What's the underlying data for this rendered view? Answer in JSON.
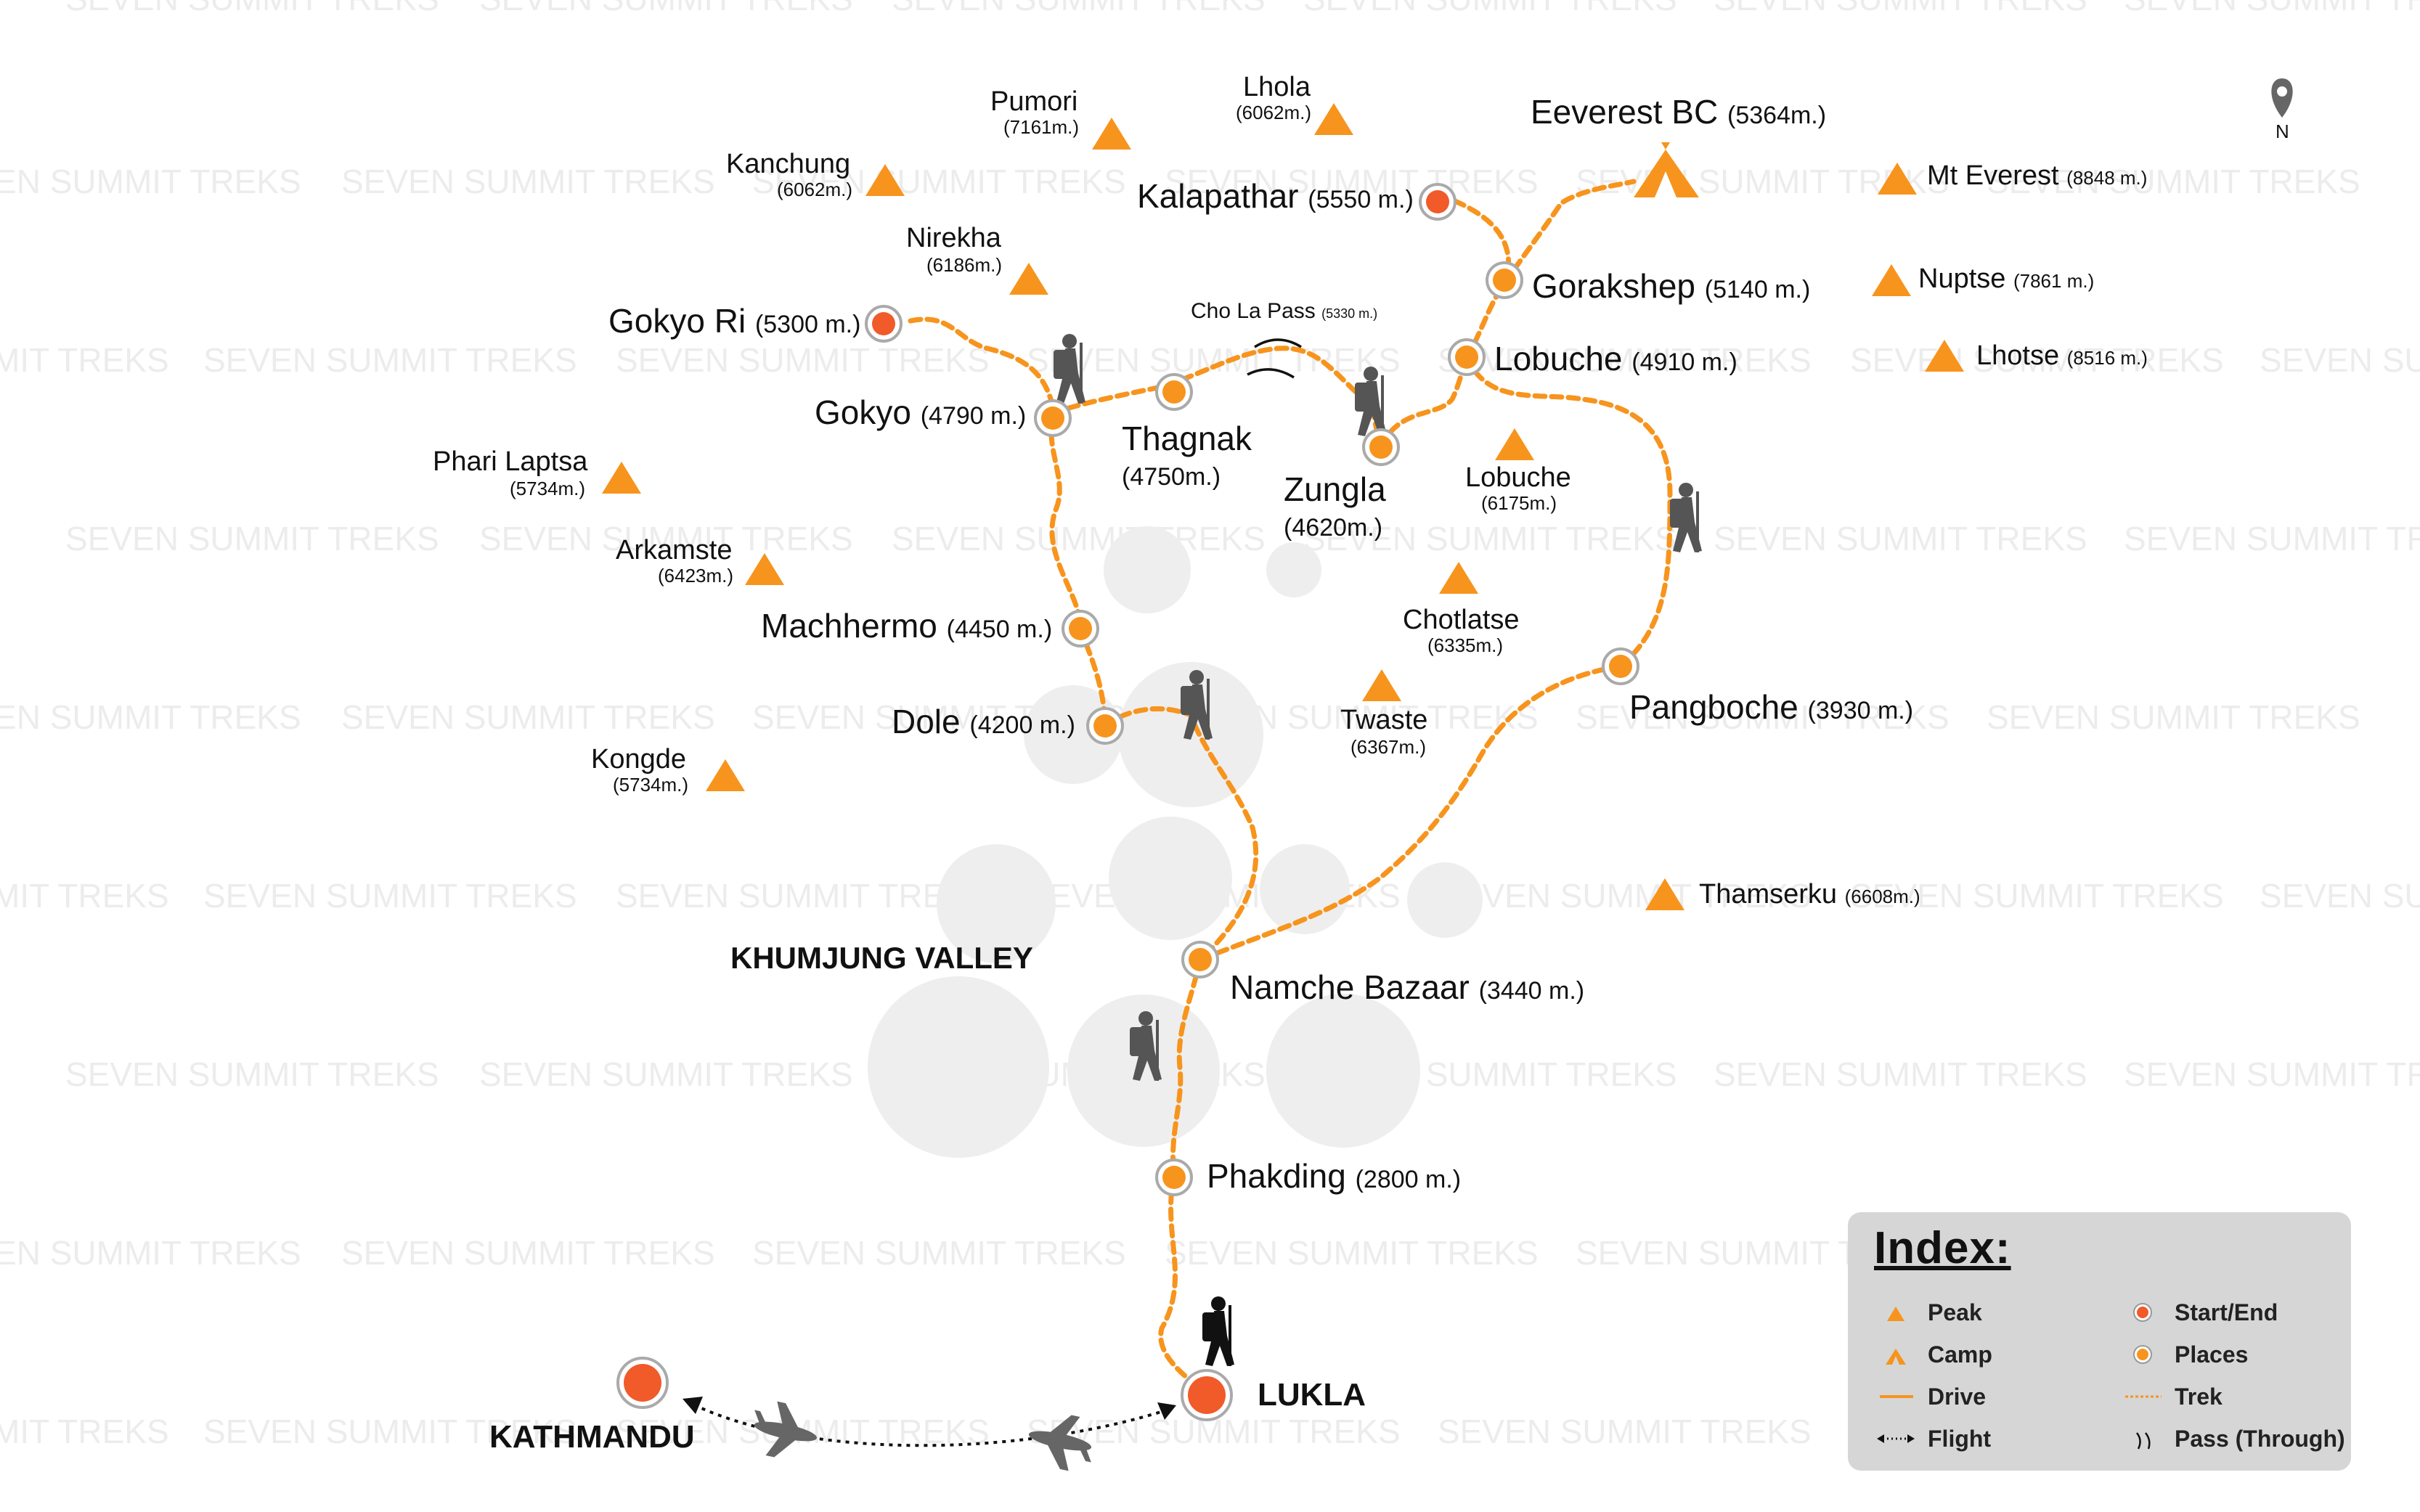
{
  "watermark": "SEVEN SUMMIT TREKS",
  "compass": {
    "label": "N",
    "icon": "location-pin-icon"
  },
  "colors": {
    "trek": "#f7941d",
    "place": "#f7941d",
    "start_end": "#f15a29",
    "peak": "#f7941d",
    "hiker": "#555555"
  },
  "places": [
    {
      "name": "Gokyo Ri",
      "altitude": "(5300 m.)",
      "type": "start_end"
    },
    {
      "name": "Kalapathar",
      "altitude": "(5550 m.)",
      "type": "start_end"
    },
    {
      "name": "Gorakshep",
      "altitude": "(5140 m.)",
      "type": "place"
    },
    {
      "name": "Lobuche",
      "altitude": "(4910 m.)",
      "type": "place"
    },
    {
      "name": "Gokyo",
      "altitude": "(4790 m.)",
      "type": "place"
    },
    {
      "name": "Thagnak",
      "altitude": "(4750m.)",
      "type": "place"
    },
    {
      "name": "Zungla",
      "altitude": "(4620m.)",
      "type": "place"
    },
    {
      "name": "Machhermo",
      "altitude": "(4450 m.)",
      "type": "place"
    },
    {
      "name": "Dole",
      "altitude": "(4200 m.)",
      "type": "place"
    },
    {
      "name": "Pangboche",
      "altitude": "(3930 m.)",
      "type": "place"
    },
    {
      "name": "Namche Bazaar",
      "altitude": "(3440 m.)",
      "type": "place"
    },
    {
      "name": "Phakding",
      "altitude": "(2800 m.)",
      "type": "place"
    }
  ],
  "cities": [
    {
      "name": "LUKLA"
    },
    {
      "name": "KATHMANDU"
    }
  ],
  "region_label": "KHUMJUNG VALLEY",
  "pass": {
    "name": "Cho La Pass",
    "altitude": "(5330 m.)"
  },
  "camp": {
    "name": "Eeverest BC",
    "altitude": "(5364m.)"
  },
  "peaks": [
    {
      "name": "Pumori",
      "altitude": "(7161m.)"
    },
    {
      "name": "Lhola",
      "altitude": "(6062m.)"
    },
    {
      "name": "Kanchung",
      "altitude": "(6062m.)"
    },
    {
      "name": "Nirekha",
      "altitude": "(6186m.)"
    },
    {
      "name": "Phari Laptsa",
      "altitude": "(5734m.)"
    },
    {
      "name": "Arkamste",
      "altitude": "(6423m.)"
    },
    {
      "name": "Kongde",
      "altitude": "(5734m.)"
    },
    {
      "name": "Mt Everest",
      "altitude": "(8848 m.)"
    },
    {
      "name": "Nuptse",
      "altitude": "(7861 m.)"
    },
    {
      "name": "Lhotse",
      "altitude": "(8516 m.)"
    },
    {
      "name": "Lobuche",
      "altitude": "(6175m.)"
    },
    {
      "name": "Chotlatse",
      "altitude": "(6335m.)"
    },
    {
      "name": "Twaste",
      "altitude": "(6367m.)"
    },
    {
      "name": "Thamserku",
      "altitude": "(6608m.)"
    }
  ],
  "legend": {
    "title": "Index:",
    "items": [
      {
        "label": "Peak",
        "icon": "peak-icon"
      },
      {
        "label": "Start/End",
        "icon": "start-end-icon"
      },
      {
        "label": "Camp",
        "icon": "camp-icon"
      },
      {
        "label": "Places",
        "icon": "place-icon"
      },
      {
        "label": "Drive",
        "icon": "drive-line-icon"
      },
      {
        "label": "Trek",
        "icon": "trek-line-icon"
      },
      {
        "label": "Flight",
        "icon": "flight-line-icon"
      },
      {
        "label": "Pass (Through)",
        "icon": "pass-icon"
      }
    ]
  }
}
